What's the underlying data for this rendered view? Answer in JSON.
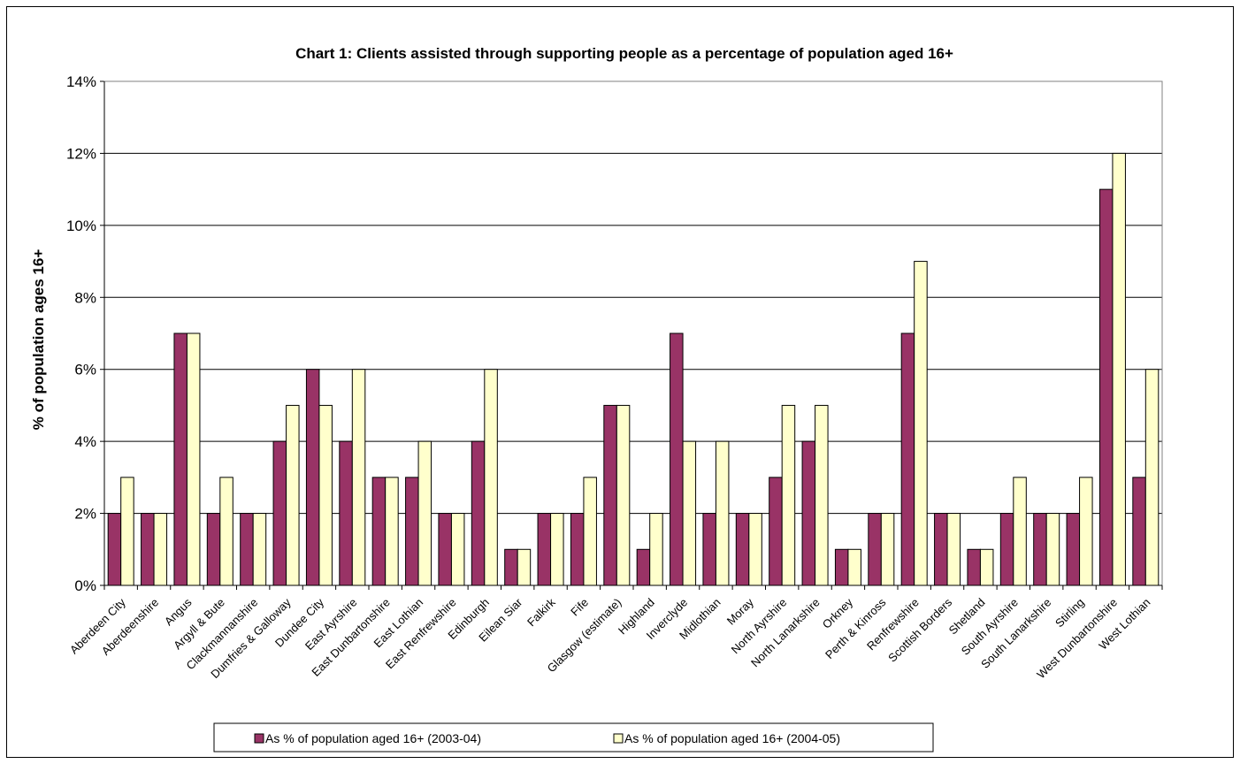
{
  "chart_data": {
    "type": "bar",
    "title": "Chart 1: Clients assisted through supporting people as a percentage of population aged 16+",
    "xlabel": "",
    "ylabel": "% of population ages 16+",
    "ylim": [
      0,
      14
    ],
    "yticks": [
      "0%",
      "2%",
      "4%",
      "6%",
      "8%",
      "10%",
      "12%",
      "14%"
    ],
    "grid": true,
    "legend_position": "bottom",
    "categories": [
      "Aberdeen City",
      "Aberdeenshire",
      "Angus",
      "Argyll & Bute",
      "Clackmannanshire",
      "Dumfries & Galloway",
      "Dundee City",
      "East Ayrshire",
      "East Dunbartonshire",
      "East Lothian",
      "East Renfrewshire",
      "Edinburgh",
      "Eilean Siar",
      "Falkirk",
      "Fife",
      "Glasgow (estimate)",
      "Highland",
      "Inverclyde",
      "Midlothian",
      "Moray",
      "North Ayrshire",
      "North Lanarkshire",
      "Orkney",
      "Perth & Kinross",
      "Renfrewshire",
      "Scottish Borders",
      "Shetland",
      "South Ayrshire",
      "South Lanarkshire",
      "Stirling",
      "West Dunbartonshire",
      "West Lothian"
    ],
    "series": [
      {
        "name": "As % of population aged 16+ (2003-04)",
        "color": "#993366",
        "values": [
          2,
          2,
          7,
          2,
          2,
          4,
          6,
          4,
          3,
          3,
          2,
          4,
          1,
          2,
          2,
          5,
          1,
          7,
          2,
          2,
          3,
          4,
          1,
          2,
          7,
          2,
          1,
          2,
          2,
          2,
          11,
          3
        ]
      },
      {
        "name": "As % of population aged 16+ (2004-05)",
        "color": "#FFFFCC",
        "values": [
          3,
          2,
          7,
          3,
          2,
          5,
          5,
          6,
          3,
          4,
          2,
          6,
          1,
          2,
          3,
          5,
          2,
          4,
          4,
          2,
          5,
          5,
          1,
          2,
          9,
          2,
          1,
          3,
          2,
          3,
          12,
          6
        ]
      }
    ]
  }
}
